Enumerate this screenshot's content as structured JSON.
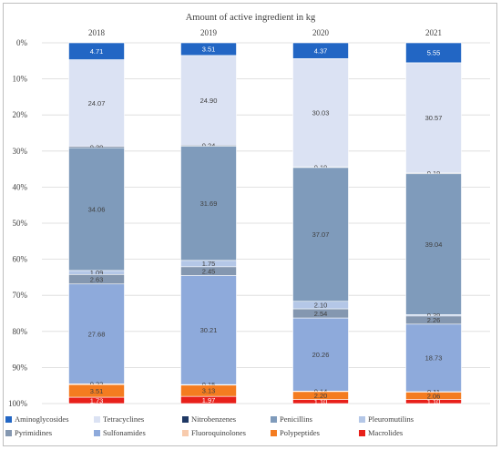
{
  "chart_data": {
    "type": "bar",
    "stacked": true,
    "orientation": "vertical",
    "title": "Amount of active ingredient in kg",
    "categories": [
      "2018",
      "2019",
      "2020",
      "2021"
    ],
    "ylim": [
      0,
      100
    ],
    "y_axis_reversed": true,
    "y_ticks": [
      "0%",
      "10%",
      "20%",
      "30%",
      "40%",
      "50%",
      "60%",
      "70%",
      "80%",
      "90%",
      "100%"
    ],
    "grid": true,
    "legend_position": "bottom",
    "series": [
      {
        "name": "Aminoglycosides",
        "color": "#2266c4",
        "values": [
          4.71,
          3.51,
          4.37,
          5.55
        ]
      },
      {
        "name": "Tetracyclines",
        "color": "#dbe2f3",
        "values": [
          24.07,
          24.9,
          30.03,
          30.57
        ]
      },
      {
        "name": "Nitrobenzenes",
        "color": "#1f3864",
        "values": [
          0.3,
          0.24,
          0.19,
          0.19
        ]
      },
      {
        "name": "Penicillins",
        "color": "#7f9bbb",
        "values": [
          34.06,
          31.69,
          37.07,
          39.04
        ]
      },
      {
        "name": "Pleuromutilins",
        "color": "#b4c7e7",
        "values": [
          1.09,
          1.75,
          2.1,
          0.39
        ]
      },
      {
        "name": "Pyrimidines",
        "color": "#8497b0",
        "values": [
          2.63,
          2.45,
          2.54,
          2.26
        ]
      },
      {
        "name": "Sulfonamides",
        "color": "#8eaadb",
        "values": [
          27.68,
          30.21,
          20.26,
          18.73
        ]
      },
      {
        "name": "Fluoroquinolones",
        "color": "#f8cbad",
        "values": [
          0.22,
          0.15,
          0.14,
          0.11
        ]
      },
      {
        "name": "Polypeptides",
        "color": "#f47c20",
        "values": [
          3.51,
          3.13,
          2.2,
          2.06
        ]
      },
      {
        "name": "Macrolides",
        "color": "#e8201a",
        "values": [
          1.73,
          1.97,
          1.1,
          1.1
        ]
      }
    ]
  }
}
